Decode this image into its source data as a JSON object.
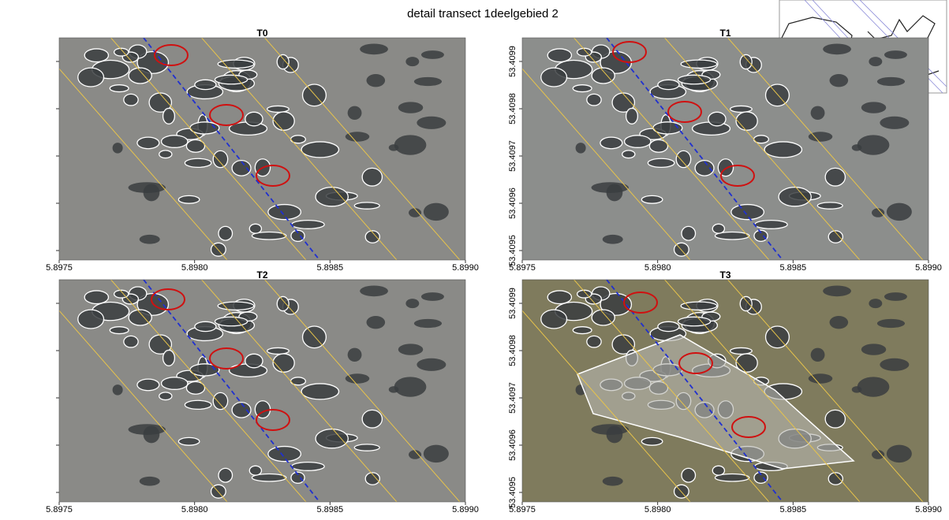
{
  "title": "detail transect 1deelgebied 2",
  "axes": {
    "xlim": [
      5.8975,
      5.899
    ],
    "ylim": [
      53.40948,
      53.40995
    ],
    "xticks": [
      5.8975,
      {
        "value": 5.898,
        "label": "5.8980"
      },
      5.8985,
      {
        "value": 5.899,
        "label": "5.8990"
      }
    ],
    "yticks": [
      53.4095,
      53.4096,
      53.4097,
      53.4098,
      53.4099
    ]
  },
  "panels": [
    {
      "title": "T0"
    },
    {
      "title": "T1"
    },
    {
      "title": "T2"
    },
    {
      "title": "T3"
    }
  ]
}
